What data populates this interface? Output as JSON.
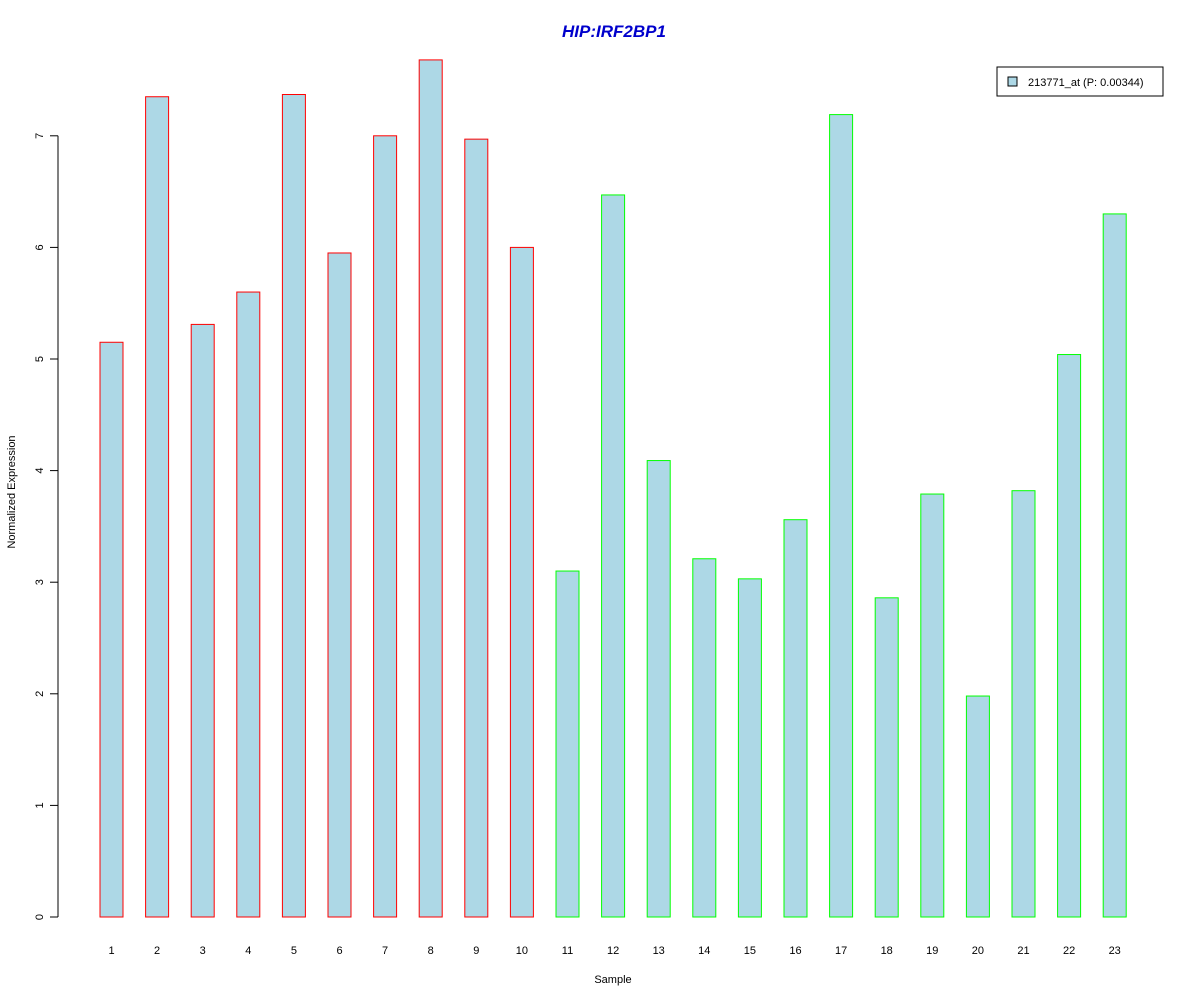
{
  "chart_data": {
    "type": "bar",
    "title": "HIP:IRF2BP1",
    "xlabel": "Sample",
    "ylabel": "Normalized Expression",
    "categories": [
      "1",
      "2",
      "3",
      "4",
      "5",
      "6",
      "7",
      "8",
      "9",
      "10",
      "11",
      "12",
      "13",
      "14",
      "15",
      "16",
      "17",
      "18",
      "19",
      "20",
      "21",
      "22",
      "23"
    ],
    "values": [
      5.15,
      7.35,
      5.31,
      5.6,
      7.37,
      5.95,
      7.0,
      7.68,
      6.97,
      6.0,
      3.1,
      6.47,
      4.09,
      3.21,
      3.03,
      3.56,
      7.19,
      2.86,
      3.79,
      1.98,
      3.82,
      5.04,
      6.3
    ],
    "group_border_colors": [
      "#ff0000",
      "#ff0000",
      "#ff0000",
      "#ff0000",
      "#ff0000",
      "#ff0000",
      "#ff0000",
      "#ff0000",
      "#ff0000",
      "#ff0000",
      "#00ff00",
      "#00ff00",
      "#00ff00",
      "#00ff00",
      "#00ff00",
      "#00ff00",
      "#00ff00",
      "#00ff00",
      "#00ff00",
      "#00ff00",
      "#00ff00",
      "#00ff00",
      "#00ff00"
    ],
    "bar_fill": "#add8e6",
    "title_color": "#0000cc",
    "yticks": [
      0,
      1,
      2,
      3,
      4,
      5,
      6,
      7
    ],
    "ylim": [
      0,
      7.68
    ],
    "legend": {
      "label": "213771_at (P: 0.00344)",
      "position": "top-right"
    },
    "grid": false
  }
}
